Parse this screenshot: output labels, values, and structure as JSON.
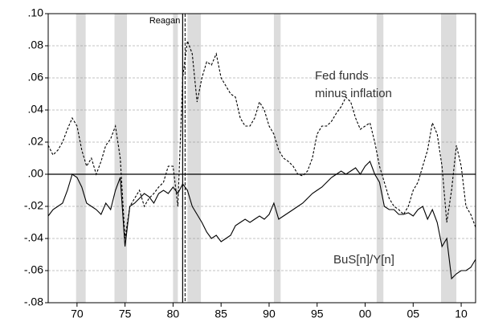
{
  "chart_data": {
    "type": "line",
    "annotations": [
      "Fed funds",
      "minus inflation",
      "BuS[n]/Y[n]"
    ],
    "event": {
      "label": "Reagan",
      "x": 1981.0
    },
    "recessions": [
      [
        1969.9,
        1970.9
      ],
      [
        1973.9,
        1975.2
      ],
      [
        1980.0,
        1980.5
      ],
      [
        1981.5,
        1982.9
      ],
      [
        1990.5,
        1991.2
      ],
      [
        2001.2,
        2001.9
      ],
      [
        2007.9,
        2009.5
      ]
    ],
    "recession_color": "#dcdcdc",
    "grid": true,
    "xlim": [
      1967,
      2011.5
    ],
    "xticks": [
      {
        "value": 1970,
        "label": "70"
      },
      {
        "value": 1975,
        "label": "75"
      },
      {
        "value": 1980,
        "label": "80"
      },
      {
        "value": 1985,
        "label": "85"
      },
      {
        "value": 1990,
        "label": "90"
      },
      {
        "value": 1995,
        "label": "95"
      },
      {
        "value": 2000,
        "label": "00"
      },
      {
        "value": 2005,
        "label": "05"
      },
      {
        "value": 2010,
        "label": "10"
      }
    ],
    "ylim": [
      -0.08,
      0.1
    ],
    "yticks": [
      {
        "value": 0.1,
        "label": ".10"
      },
      {
        "value": 0.08,
        "label": ".08"
      },
      {
        "value": 0.06,
        "label": ".06"
      },
      {
        "value": 0.04,
        "label": ".04"
      },
      {
        "value": 0.02,
        "label": ".02"
      },
      {
        "value": 0.0,
        "label": ".00"
      },
      {
        "value": -0.02,
        "label": "-.02"
      },
      {
        "value": -0.04,
        "label": "-.04"
      },
      {
        "value": -0.06,
        "label": "-.06"
      },
      {
        "value": -0.08,
        "label": "-.08"
      }
    ],
    "x": [
      1967.0,
      1967.5,
      1968.0,
      1968.5,
      1969.0,
      1969.5,
      1970.0,
      1970.5,
      1971.0,
      1971.5,
      1972.0,
      1972.5,
      1973.0,
      1973.5,
      1974.0,
      1974.5,
      1975.0,
      1975.5,
      1976.0,
      1976.5,
      1977.0,
      1977.5,
      1978.0,
      1978.5,
      1979.0,
      1979.5,
      1980.0,
      1980.5,
      1981.0,
      1981.5,
      1982.0,
      1982.5,
      1983.0,
      1983.5,
      1984.0,
      1984.5,
      1985.0,
      1985.5,
      1986.0,
      1986.5,
      1987.0,
      1987.5,
      1988.0,
      1988.5,
      1989.0,
      1989.5,
      1990.0,
      1990.5,
      1991.0,
      1991.5,
      1992.0,
      1992.5,
      1993.0,
      1993.5,
      1994.0,
      1994.5,
      1995.0,
      1995.5,
      1996.0,
      1996.5,
      1997.0,
      1997.5,
      1998.0,
      1998.5,
      1999.0,
      1999.5,
      2000.0,
      2000.5,
      2001.0,
      2001.5,
      2002.0,
      2002.5,
      2003.0,
      2003.5,
      2004.0,
      2004.5,
      2005.0,
      2005.5,
      2006.0,
      2006.5,
      2007.0,
      2007.5,
      2008.0,
      2008.5,
      2009.0,
      2009.5,
      2010.0,
      2010.5,
      2011.0,
      2011.5
    ],
    "series": [
      {
        "color": "#000000",
        "dash": true,
        "values": [
          0.018,
          0.012,
          0.015,
          0.02,
          0.028,
          0.035,
          0.03,
          0.015,
          0.005,
          0.01,
          0.0,
          0.008,
          0.018,
          0.022,
          0.03,
          0.01,
          -0.04,
          -0.02,
          -0.015,
          -0.01,
          -0.02,
          -0.015,
          -0.012,
          -0.008,
          -0.005,
          0.005,
          0.005,
          -0.02,
          0.06,
          0.083,
          0.075,
          0.045,
          0.06,
          0.07,
          0.068,
          0.075,
          0.06,
          0.055,
          0.05,
          0.048,
          0.035,
          0.03,
          0.03,
          0.035,
          0.045,
          0.04,
          0.03,
          0.025,
          0.015,
          0.01,
          0.008,
          0.005,
          0.0,
          -0.001,
          0.002,
          0.01,
          0.025,
          0.03,
          0.03,
          0.033,
          0.038,
          0.042,
          0.048,
          0.045,
          0.035,
          0.028,
          0.03,
          0.032,
          0.02,
          0.005,
          -0.005,
          -0.015,
          -0.02,
          -0.022,
          -0.025,
          -0.02,
          -0.01,
          -0.005,
          0.005,
          0.015,
          0.032,
          0.025,
          0.005,
          -0.03,
          -0.01,
          0.018,
          0.005,
          -0.02,
          -0.025,
          -0.033
        ]
      },
      {
        "color": "#000000",
        "dash": false,
        "values": [
          -0.026,
          -0.022,
          -0.02,
          -0.018,
          -0.01,
          0.0,
          -0.002,
          -0.008,
          -0.018,
          -0.02,
          -0.022,
          -0.025,
          -0.018,
          -0.022,
          -0.01,
          -0.002,
          -0.045,
          -0.02,
          -0.018,
          -0.015,
          -0.012,
          -0.014,
          -0.018,
          -0.012,
          -0.01,
          -0.012,
          -0.008,
          -0.012,
          -0.006,
          -0.01,
          -0.02,
          -0.025,
          -0.03,
          -0.036,
          -0.04,
          -0.038,
          -0.042,
          -0.04,
          -0.038,
          -0.032,
          -0.03,
          -0.028,
          -0.03,
          -0.028,
          -0.026,
          -0.028,
          -0.025,
          -0.018,
          -0.028,
          -0.026,
          -0.024,
          -0.022,
          -0.02,
          -0.018,
          -0.015,
          -0.012,
          -0.01,
          -0.008,
          -0.005,
          -0.002,
          0.0,
          0.002,
          0.0,
          0.002,
          0.004,
          0.0,
          0.005,
          0.008,
          0.0,
          -0.005,
          -0.02,
          -0.022,
          -0.022,
          -0.025,
          -0.025,
          -0.024,
          -0.026,
          -0.022,
          -0.02,
          -0.028,
          -0.022,
          -0.03,
          -0.045,
          -0.04,
          -0.065,
          -0.062,
          -0.06,
          -0.06,
          -0.058,
          -0.053
        ]
      }
    ]
  }
}
